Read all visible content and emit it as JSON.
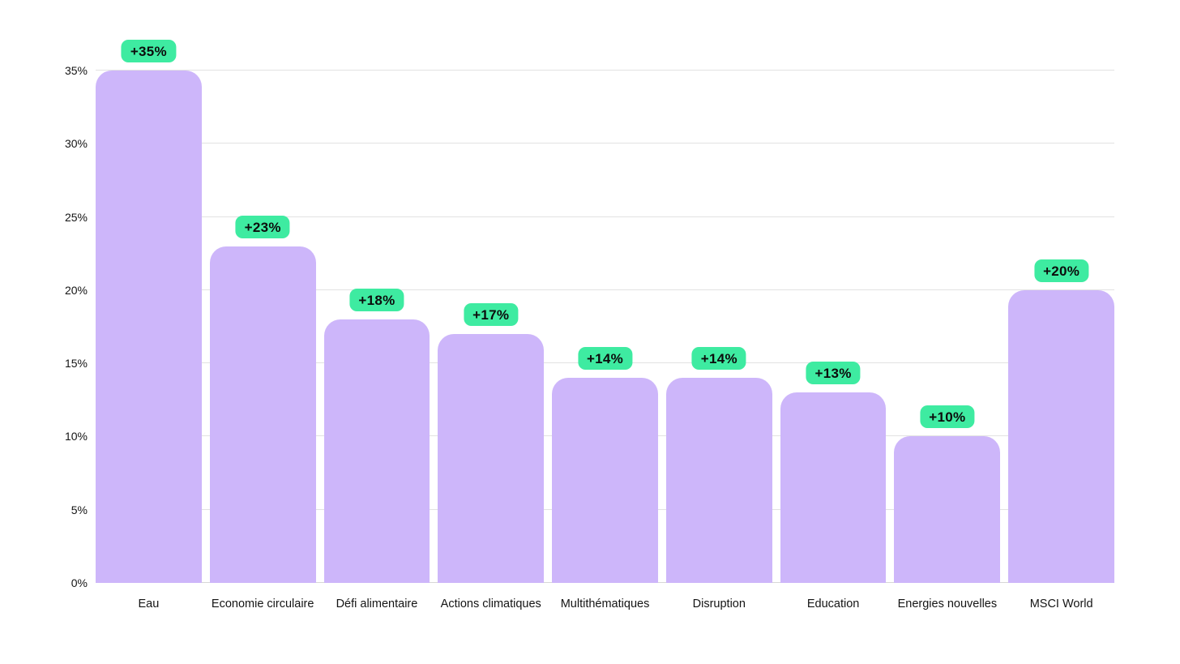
{
  "chart_data": {
    "type": "bar",
    "title": "",
    "xlabel": "",
    "ylabel": "",
    "categories": [
      "Eau",
      "Economie circulaire",
      "Défi alimentaire",
      "Actions climatiques",
      "Multithématiques",
      "Disruption",
      "Education",
      "Energies nouvelles",
      "MSCI World"
    ],
    "values": [
      35,
      23,
      18,
      17,
      14,
      14,
      13,
      10,
      20
    ],
    "value_labels": [
      "+35%",
      "+23%",
      "+18%",
      "+17%",
      "+14%",
      "+14%",
      "+13%",
      "+10%",
      "+20%"
    ],
    "ylim": [
      0,
      35
    ],
    "yticks": [
      0,
      5,
      10,
      15,
      20,
      25,
      30,
      35
    ],
    "ytick_labels": [
      "0%",
      "5%",
      "10%",
      "15%",
      "20%",
      "25%",
      "30%",
      "35%"
    ],
    "grid": true,
    "legend": false,
    "colors": {
      "bar_fill": "#cdb6fa",
      "badge_background": "#3eeba1",
      "badge_text": "#0c0c0c",
      "gridline": "#e2e2e2",
      "baseline": "#d6d6d6",
      "axis_text": "#141414",
      "background": "#ffffff"
    }
  }
}
